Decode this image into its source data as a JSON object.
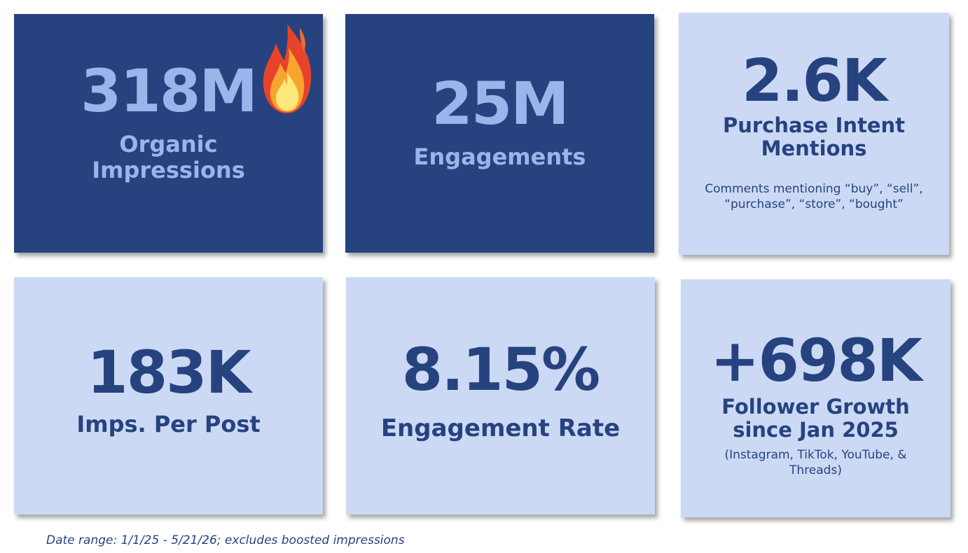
{
  "cards": [
    {
      "value": "318M",
      "label": "Organic Impressions"
    },
    {
      "value": "25M",
      "label": "Engagements"
    },
    {
      "value": "2.6K",
      "label": "Purchase Intent Mentions",
      "note": "Comments mentioning “buy”, “sell”, “purchase”, “store”, “bought”"
    },
    {
      "value": "183K",
      "label": "Imps. Per Post"
    },
    {
      "value": "8.15%",
      "label": "Engagement Rate"
    },
    {
      "value": "+698K",
      "label": "Follower Growth since Jan 2025",
      "note": "(Instagram, TikTok, YouTube, & Threads)"
    }
  ],
  "footer": "Date range: 1/1/25 - 5/21/26; excludes boosted impressions"
}
